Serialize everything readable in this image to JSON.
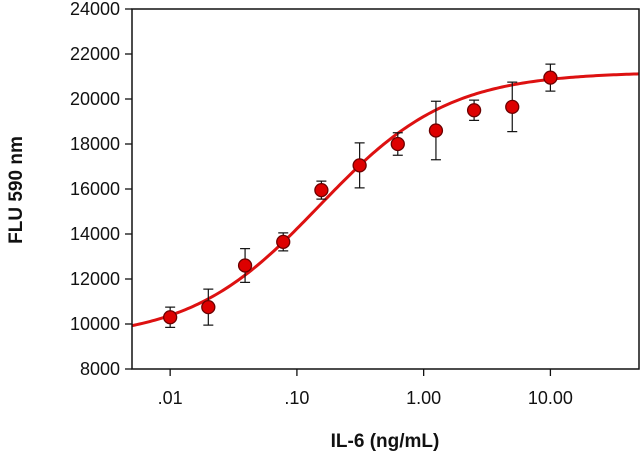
{
  "chart_data": {
    "type": "scatter",
    "title": "",
    "xlabel": "IL-6 (ng/mL)",
    "ylabel": "FLU 590 nm",
    "x_scale": "log",
    "xlim": [
      0.005,
      50
    ],
    "ylim": [
      8000,
      24000
    ],
    "x_ticks": [
      {
        "value": 0.01,
        "label": ".01"
      },
      {
        "value": 0.1,
        "label": ".10"
      },
      {
        "value": 1,
        "label": "1.00"
      },
      {
        "value": 10,
        "label": "10.00"
      }
    ],
    "y_ticks": [
      {
        "value": 8000,
        "label": "8000"
      },
      {
        "value": 10000,
        "label": "10000"
      },
      {
        "value": 12000,
        "label": "12000"
      },
      {
        "value": 14000,
        "label": "14000"
      },
      {
        "value": 16000,
        "label": "16000"
      },
      {
        "value": 18000,
        "label": "18000"
      },
      {
        "value": 20000,
        "label": "20000"
      },
      {
        "value": 22000,
        "label": "22000"
      },
      {
        "value": 24000,
        "label": "24000"
      }
    ],
    "grid": false,
    "legend": "none",
    "colors": {
      "marker": "#dd0000",
      "marker_edge": "#6b0000",
      "curve": "#dd1111",
      "errorbar": "#111111",
      "axis": "#111111"
    },
    "points": [
      {
        "x": 0.01,
        "y": 10300,
        "err": 450
      },
      {
        "x": 0.02,
        "y": 10750,
        "err": 800
      },
      {
        "x": 0.039,
        "y": 12600,
        "err": 750
      },
      {
        "x": 0.078,
        "y": 13650,
        "err": 400
      },
      {
        "x": 0.156,
        "y": 15950,
        "err": 400
      },
      {
        "x": 0.3125,
        "y": 17050,
        "err": 1000
      },
      {
        "x": 0.625,
        "y": 18000,
        "err": 500
      },
      {
        "x": 1.25,
        "y": 18600,
        "err": 1300
      },
      {
        "x": 2.5,
        "y": 19500,
        "err": 450
      },
      {
        "x": 5,
        "y": 19650,
        "err": 1100
      },
      {
        "x": 10,
        "y": 20950,
        "err": 600
      }
    ],
    "fit": {
      "model": "4PL",
      "bottom": 9300,
      "top": 21200,
      "ec50": 0.15,
      "hill": 0.85,
      "x_from": 0.005,
      "x_to": 50
    }
  }
}
